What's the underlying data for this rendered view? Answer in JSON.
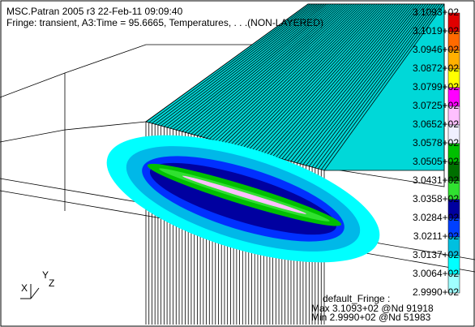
{
  "header": {
    "line1": "MSC.Patran 2005 r3 22-Feb-11 09:09:40",
    "line2": "Fringe: transient, A3:Time = 95.6665, Temperatures, . . .(NON-LAYERED)"
  },
  "legend": {
    "labels": [
      "3.1093+02",
      "3.1019+02",
      "3.0946+02",
      "3.0872+02",
      "3.0799+02",
      "3.0725+02",
      "3.0652+02",
      "3.0578+02",
      "3.0505+02",
      "3.0431+02",
      "3.0358+02",
      "3.0284+02",
      "3.0211+02",
      "3.0137+02",
      "3.0064+02",
      "2.9990+02"
    ],
    "colors": [
      "#e00000",
      "#ff6a00",
      "#ffb000",
      "#ffff00",
      "#ff00ff",
      "#ffc0ff",
      "#f0f0ff",
      "#00c000",
      "#007000",
      "#30e030",
      "#0000a0",
      "#0040ff",
      "#00c0e0",
      "#00ffff",
      "#a0ffff"
    ]
  },
  "footer": {
    "line1": "default_Fringe :",
    "line2": "Max 3.1093+02 @Nd 91918",
    "line3": "Min 2.9990+02 @Nd 51983"
  },
  "triad": {
    "x": "X",
    "y": "Y",
    "z": "Z"
  }
}
